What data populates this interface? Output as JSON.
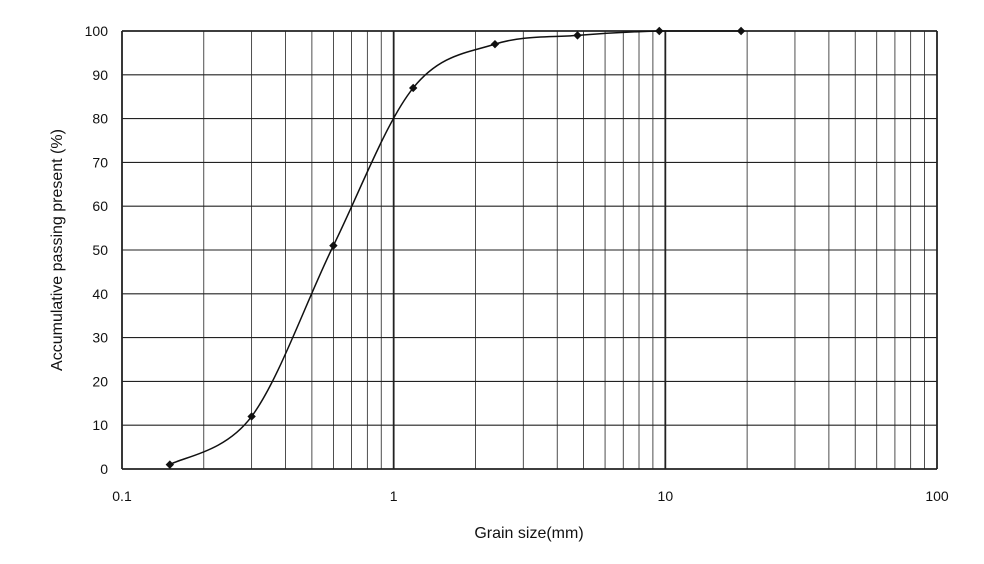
{
  "chart_data": {
    "type": "line",
    "title": "",
    "xlabel": "Grain size(mm)",
    "ylabel": "Accumulative passing present (%)",
    "x_scale": "log",
    "xlim": [
      0.1,
      100
    ],
    "ylim": [
      0,
      100
    ],
    "grid": true,
    "x_ticks": [
      {
        "value": 0.1,
        "label": "0.1"
      },
      {
        "value": 1,
        "label": "1"
      },
      {
        "value": 10,
        "label": "10"
      },
      {
        "value": 100,
        "label": "100"
      }
    ],
    "y_ticks": [
      {
        "value": 0,
        "label": "0"
      },
      {
        "value": 10,
        "label": "10"
      },
      {
        "value": 20,
        "label": "20"
      },
      {
        "value": 30,
        "label": "30"
      },
      {
        "value": 40,
        "label": "40"
      },
      {
        "value": 50,
        "label": "50"
      },
      {
        "value": 60,
        "label": "60"
      },
      {
        "value": 70,
        "label": "70"
      },
      {
        "value": 80,
        "label": "80"
      },
      {
        "value": 90,
        "label": "90"
      },
      {
        "value": 100,
        "label": "100"
      }
    ],
    "series": [
      {
        "x": [
          0.15,
          0.3,
          0.6,
          1.18,
          2.36,
          4.75,
          9.5,
          19
        ],
        "y": [
          1,
          12,
          51,
          87,
          97,
          99,
          100,
          100
        ]
      }
    ],
    "colors": {
      "line": "#111111",
      "grid": "#222222",
      "marker": "#111111"
    }
  }
}
